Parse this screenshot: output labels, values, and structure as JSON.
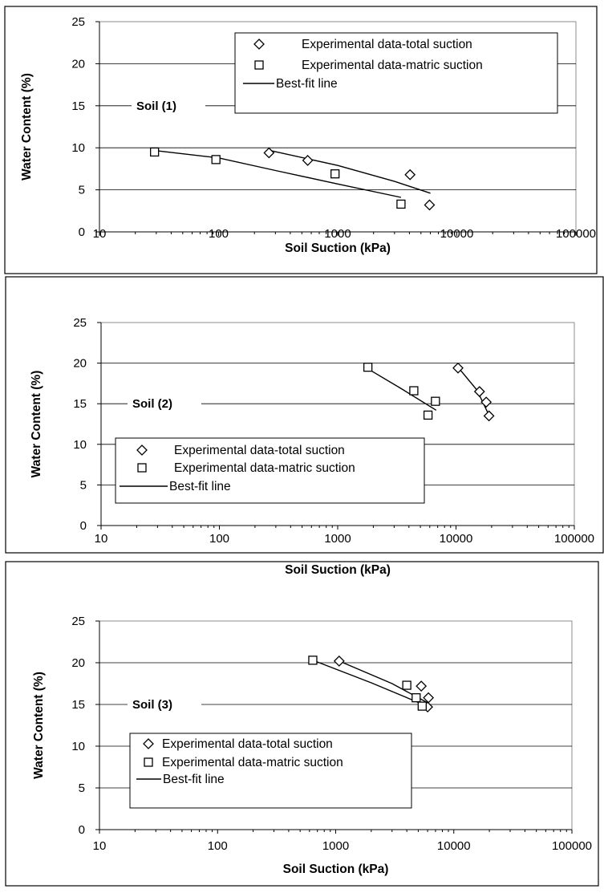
{
  "chart_data": [
    {
      "type": "scatter",
      "panel_label": "Soil (1)",
      "xlabel": "Soil Suction (kPa)",
      "ylabel": "Water Content (%)",
      "x_scale": "log",
      "xlim": [
        10,
        100000
      ],
      "ylim": [
        0,
        25
      ],
      "x_ticks": [
        "10",
        "100",
        "1000",
        "10000",
        "100000"
      ],
      "y_ticks": [
        "0",
        "5",
        "10",
        "15",
        "20",
        "25"
      ],
      "grid": "horizontal",
      "legend": {
        "position": "top-right",
        "entries": [
          {
            "label": "Experimental data-total suction",
            "marker": "diamond"
          },
          {
            "label": "Experimental data-matric suction",
            "marker": "square"
          },
          {
            "label": "Best-fit line",
            "marker": "line"
          }
        ]
      },
      "series": [
        {
          "name": "Experimental data-total suction",
          "marker": "diamond",
          "points": [
            [
              265,
              9.4
            ],
            [
              560,
              8.5
            ],
            [
              4050,
              6.8
            ],
            [
              5900,
              3.2
            ]
          ]
        },
        {
          "name": "Experimental data-matric suction",
          "marker": "square",
          "points": [
            [
              29,
              9.5
            ],
            [
              95,
              8.6
            ],
            [
              950,
              6.9
            ],
            [
              3400,
              3.3
            ]
          ]
        },
        {
          "name": "Best-fit line",
          "marker": "line",
          "points": [
            [
              28,
              9.7
            ],
            [
              100,
              8.8
            ],
            [
              300,
              7.3
            ],
            [
              1000,
              5.7
            ],
            [
              3400,
              4.1
            ]
          ]
        },
        {
          "name": "Best-fit line",
          "marker": "line",
          "points": [
            [
              265,
              9.7
            ],
            [
              1000,
              7.9
            ],
            [
              3000,
              6.0
            ],
            [
              6000,
              4.6
            ]
          ]
        }
      ]
    },
    {
      "type": "scatter",
      "panel_label": "Soil (2)",
      "xlabel": "Soil Suction (kPa)",
      "ylabel": "Water Content (%)",
      "x_scale": "log",
      "xlim": [
        10,
        100000
      ],
      "ylim": [
        0,
        25
      ],
      "x_ticks": [
        "10",
        "100",
        "1000",
        "10000",
        "100000"
      ],
      "y_ticks": [
        "0",
        "5",
        "10",
        "15",
        "20",
        "25"
      ],
      "grid": "horizontal",
      "legend": {
        "position": "bottom-left",
        "entries": [
          {
            "label": "Experimental data-total suction",
            "marker": "diamond"
          },
          {
            "label": "Experimental data-matric suction",
            "marker": "square"
          },
          {
            "label": "Best-fit line",
            "marker": "line"
          }
        ]
      },
      "series": [
        {
          "name": "Experimental data-total suction",
          "marker": "diamond",
          "points": [
            [
              10400,
              19.4
            ],
            [
              15800,
              16.5
            ],
            [
              18000,
              15.2
            ],
            [
              19000,
              13.5
            ]
          ]
        },
        {
          "name": "Experimental data-matric suction",
          "marker": "square",
          "points": [
            [
              1800,
              19.5
            ],
            [
              4400,
              16.6
            ],
            [
              5800,
              13.6
            ],
            [
              6700,
              15.3
            ]
          ]
        },
        {
          "name": "Best-fit line",
          "marker": "line",
          "points": [
            [
              1800,
              19.3
            ],
            [
              3500,
              16.8
            ],
            [
              6800,
              14.2
            ]
          ]
        },
        {
          "name": "Best-fit line",
          "marker": "line",
          "points": [
            [
              10400,
              19.5
            ],
            [
              15000,
              16.7
            ],
            [
              19000,
              13.6
            ]
          ]
        }
      ]
    },
    {
      "type": "scatter",
      "panel_label": "Soil (3)",
      "xlabel": "Soil Suction (kPa)",
      "ylabel": "Water Content (%)",
      "x_scale": "log",
      "xlim": [
        10,
        100000
      ],
      "ylim": [
        0,
        25
      ],
      "x_ticks": [
        "10",
        "100",
        "1000",
        "10000",
        "100000"
      ],
      "y_ticks": [
        "0",
        "5",
        "10",
        "15",
        "20",
        "25"
      ],
      "grid": "horizontal",
      "legend": {
        "position": "bottom-left",
        "entries": [
          {
            "label": "Experimental data-total suction",
            "marker": "diamond"
          },
          {
            "label": "Experimental data-matric suction",
            "marker": "square"
          },
          {
            "label": "Best-fit line",
            "marker": "line"
          }
        ]
      },
      "series": [
        {
          "name": "Experimental data-total suction",
          "marker": "diamond",
          "points": [
            [
              1070,
              20.2
            ],
            [
              5300,
              17.2
            ],
            [
              6100,
              15.8
            ],
            [
              6000,
              14.7
            ]
          ]
        },
        {
          "name": "Experimental data-matric suction",
          "marker": "square",
          "points": [
            [
              640,
              20.3
            ],
            [
              4000,
              17.3
            ],
            [
              4800,
              15.8
            ],
            [
              5400,
              14.8
            ]
          ]
        },
        {
          "name": "Best-fit line",
          "marker": "line",
          "points": [
            [
              640,
              20.3
            ],
            [
              2000,
              17.6
            ],
            [
              5500,
              15.0
            ]
          ]
        },
        {
          "name": "Best-fit line",
          "marker": "line",
          "points": [
            [
              1070,
              20.2
            ],
            [
              3000,
              17.5
            ],
            [
              6000,
              15.2
            ]
          ]
        }
      ]
    }
  ]
}
